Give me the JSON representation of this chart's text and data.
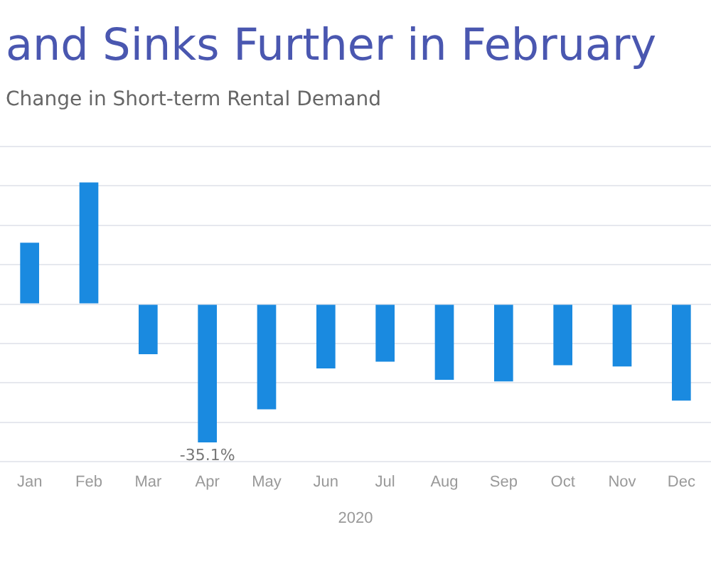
{
  "chart_data": {
    "type": "bar",
    "title": "and Sinks Further in February",
    "subtitle": "Change in Short-term Rental Demand",
    "xlabel": "2020",
    "categories": [
      "Jan",
      "Feb",
      "Mar",
      "Apr",
      "May",
      "Jun",
      "Jul",
      "Aug",
      "Sep",
      "Oct",
      "Nov",
      "Dec"
    ],
    "values": [
      15.6,
      30.9,
      -12.7,
      -35.1,
      -26.7,
      -16.3,
      -14.6,
      -19.2,
      -19.6,
      -15.5,
      -15.8,
      -24.5
    ],
    "value_labels": [
      null,
      null,
      null,
      "-35.1%",
      null,
      null,
      null,
      null,
      null,
      null,
      null,
      null
    ],
    "color": "#1a8ae0",
    "ylim": [
      -40,
      40
    ],
    "yticks": [
      {
        "value": -40,
        "label": null
      },
      {
        "value": -30,
        "label": null
      },
      {
        "value": -20,
        "label": null
      },
      {
        "value": -10,
        "label": null
      },
      {
        "value": 0,
        "label": null
      },
      {
        "value": 10,
        "label": null
      },
      {
        "value": 20,
        "label": null
      },
      {
        "value": 30,
        "label": null
      },
      {
        "value": 40,
        "label": null
      }
    ],
    "grid": "y",
    "tick_labels": "x",
    "legend": false
  }
}
